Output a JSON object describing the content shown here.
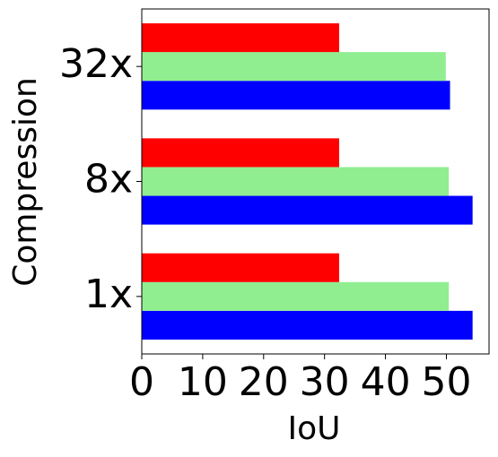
{
  "chart_data": {
    "type": "barh",
    "xlabel": "IoU",
    "ylabel": "Compression",
    "categories": [
      "1x",
      "8x",
      "32x"
    ],
    "series": [
      {
        "color": "#0000ff",
        "values": [
          54.3,
          54.3,
          50.6
        ]
      },
      {
        "color": "#90ee90",
        "values": [
          50.4,
          50.4,
          49.9
        ]
      },
      {
        "color": "#ff0000",
        "values": [
          32.4,
          32.4,
          32.4
        ]
      }
    ],
    "xlim": [
      0,
      57
    ],
    "xticks": [
      0,
      10,
      20,
      30,
      40,
      50
    ]
  }
}
